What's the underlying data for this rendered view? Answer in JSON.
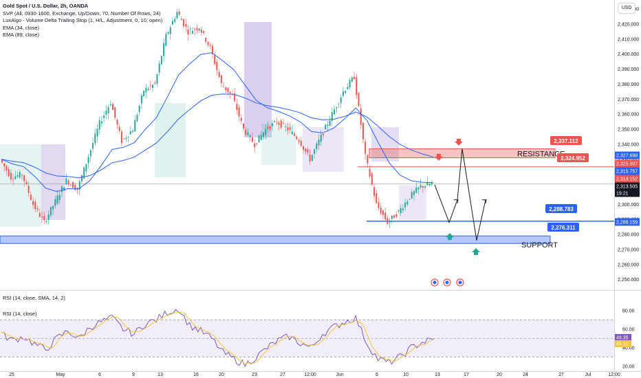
{
  "legend": {
    "title": "Gold Spot / U.S. Dollar, 2h, OANDA",
    "indicators": [
      "SVP (All, 0930-1600, Exchange, Up/Down, 70, Number Of Rows, 24)",
      "LuxAlgo - Volume Delta Trailing Stop (1, H/L, Adjustment, 0, 10, open)",
      "EMA (34, close)",
      "EMA (89, close)"
    ]
  },
  "currency_button": "USD",
  "rsi_legend_1": "RSI (14, close, SMA, 14, 2)",
  "rsi_legend_2": "RSI (14, close)",
  "colors": {
    "bull": "#26a69a",
    "bear": "#ef5350",
    "accent_blue": "#2962ff",
    "ema34": "#2962ff",
    "ema89": "#2962ff"
  },
  "chart_data": [
    {
      "type": "candlestick",
      "symbol": "XAUUSD",
      "interval": "2h",
      "y_axis_ticks": [
        "2,430.000",
        "2,420.000",
        "2,410.000",
        "2,400.000",
        "2,390.000",
        "2,380.000",
        "2,370.000",
        "2,360.000",
        "2,350.000",
        "2,340.000",
        "2,330.000",
        "2,320.000",
        "2,310.000",
        "2,300.000",
        "2,290.000",
        "2,280.000",
        "2,270.000",
        "2,260.000",
        "2,250.000"
      ],
      "ylim": [
        2243,
        2436
      ],
      "x_axis_ticks": [
        "25",
        "May",
        "6",
        "9",
        "13",
        "16",
        "20",
        "23",
        "27",
        "12:00",
        "Jun",
        "6",
        "10",
        "13",
        "17",
        "20",
        "24",
        "27",
        "Jul",
        "12:00"
      ],
      "price_series_approx": [
        2330,
        2318,
        2320,
        2300,
        2288,
        2302,
        2316,
        2310,
        2332,
        2354,
        2368,
        2342,
        2350,
        2376,
        2380,
        2412,
        2428,
        2415,
        2418,
        2404,
        2380,
        2372,
        2350,
        2340,
        2350,
        2355,
        2350,
        2343,
        2330,
        2345,
        2360,
        2375,
        2385,
        2332,
        2300,
        2288,
        2295,
        2305,
        2312,
        2313.5
      ],
      "annotations": {
        "resistance_label": "RESISTANCE",
        "support_label": "SUPPORT",
        "resistance_zone": [
          2331,
          2337
        ],
        "support_zone": [
          2274,
          2279
        ],
        "callouts": [
          {
            "label": "2,337.112",
            "value": 2337.112,
            "color": "#ef5350"
          },
          {
            "label": "2,324.952",
            "value": 2324.952,
            "color": "#ef5350"
          },
          {
            "label": "2,288.783",
            "value": 2288.783,
            "color": "#2962ff"
          },
          {
            "label": "2,276.311",
            "value": 2276.311,
            "color": "#2962ff"
          }
        ],
        "price_scale_tags": [
          {
            "label": "2,327.698",
            "value": 2327.698,
            "color": "#2962ff"
          },
          {
            "label": "2,325.507",
            "value": 2325.507,
            "color": "#ef5350"
          },
          {
            "label": "2,315.757",
            "value": 2315.757,
            "color": "#2962ff"
          },
          {
            "label": "2,314.152",
            "value": 2314.152,
            "color": "#ef5350"
          },
          {
            "label": "2,313.505",
            "value": 2313.505,
            "color": "#131722"
          },
          {
            "label": "19:21",
            "value": 2311.0,
            "color": "#131722"
          },
          {
            "label": "2,288.159",
            "value": 2288.159,
            "color": "#2962ff"
          }
        ]
      }
    },
    {
      "type": "line",
      "name": "RSI",
      "y_axis_ticks": [
        "80.00",
        "60.00",
        "40.00",
        "20.00"
      ],
      "ylim": [
        15,
        85
      ],
      "bands": [
        70,
        30
      ],
      "rsi_approx": [
        55,
        48,
        52,
        44,
        38,
        50,
        58,
        50,
        62,
        68,
        72,
        60,
        55,
        66,
        70,
        78,
        82,
        64,
        58,
        50,
        35,
        28,
        22,
        30,
        40,
        48,
        52,
        45,
        40,
        55,
        62,
        68,
        72,
        45,
        28,
        24,
        30,
        40,
        46,
        49
      ],
      "value_tags": [
        {
          "label": "49.35",
          "value": 49.35,
          "color": "#7e57c2"
        },
        {
          "label": "45.11",
          "value": 45.11,
          "color": "#f4c542"
        }
      ]
    }
  ]
}
